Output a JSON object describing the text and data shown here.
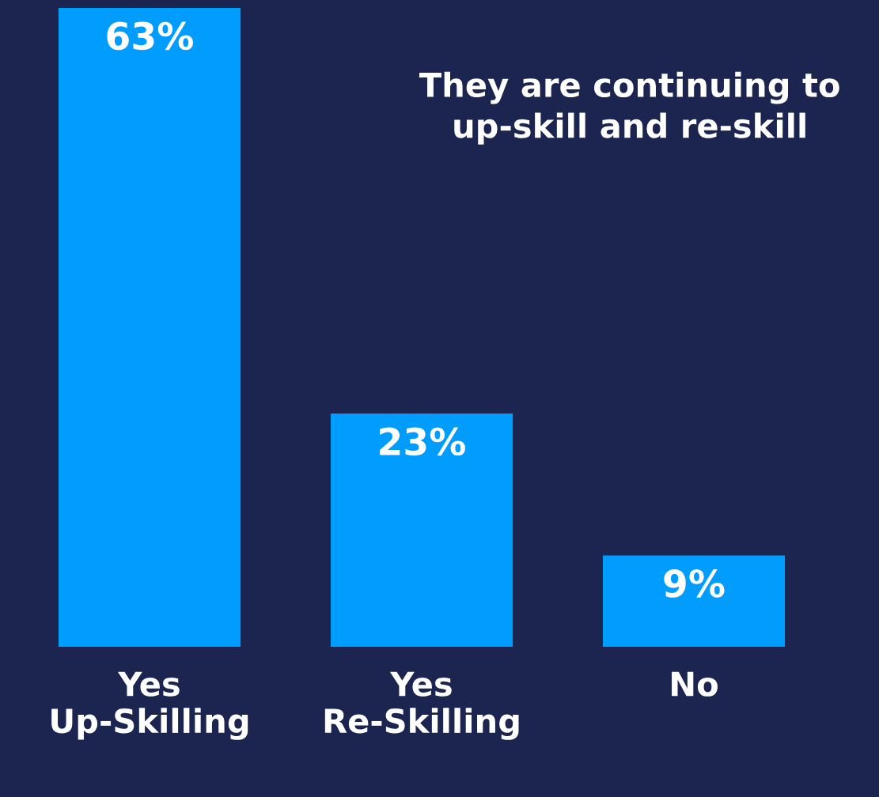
{
  "chart_data": {
    "type": "bar",
    "categories": [
      "Yes\nUp-Skilling",
      "Yes\nRe-Skilling",
      "No"
    ],
    "values": [
      63,
      23,
      9
    ],
    "value_labels": [
      "63%",
      "23%",
      "9%"
    ],
    "color": "#009dff",
    "annotations": [
      "They are continuing to\nup-skill and re-skill"
    ],
    "ylim": [
      0,
      63
    ],
    "tick_labels": "x",
    "grid": false,
    "legend": false
  }
}
